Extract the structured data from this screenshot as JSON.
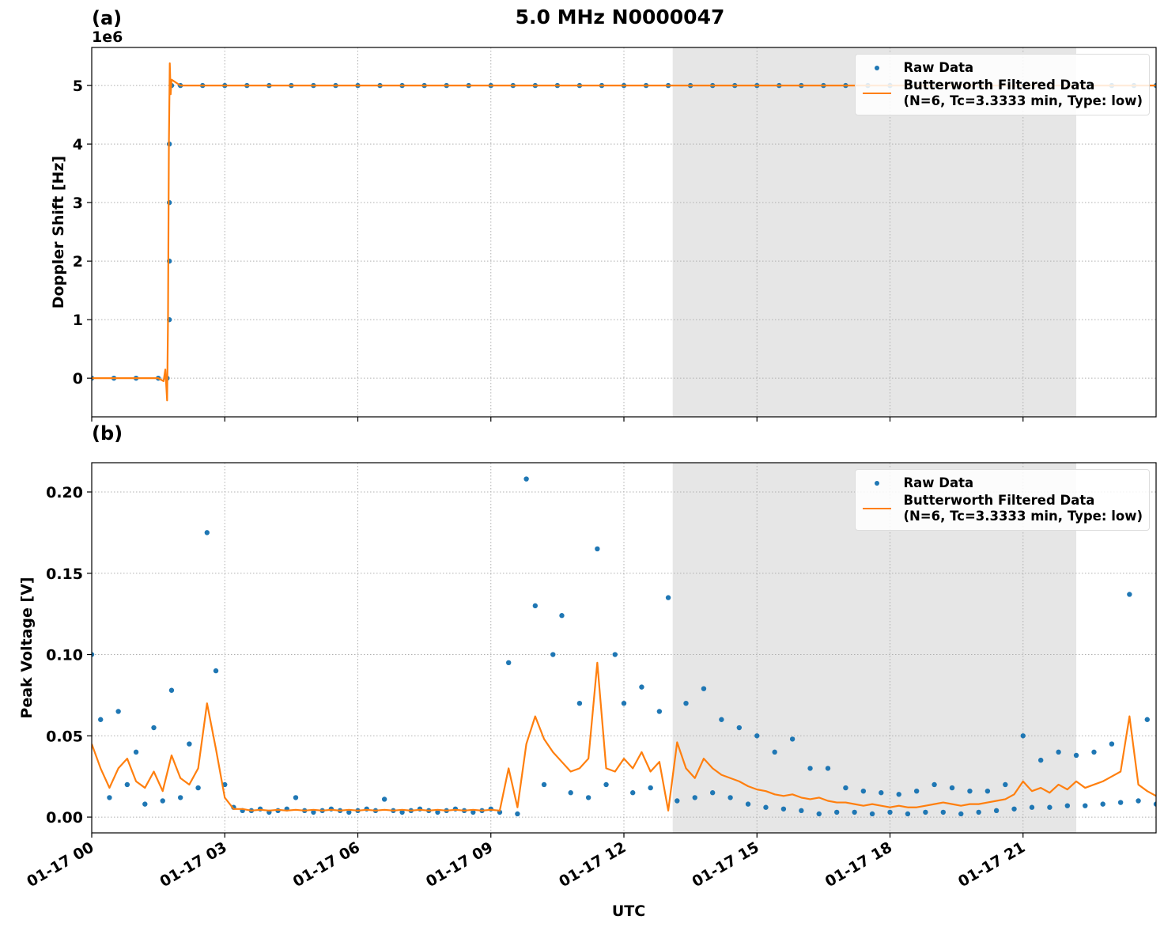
{
  "title": "5.0 MHz N0000047",
  "chart_data": [
    {
      "type": "line",
      "panel_label": "(a)",
      "ylabel": "Doppler Shift [Hz]",
      "offset_text": "1e6",
      "xlim": [
        0,
        24
      ],
      "xticks": [
        0,
        3,
        6,
        9,
        12,
        15,
        18,
        21
      ],
      "ylim": [
        -660000,
        5650000
      ],
      "yticks": [
        0,
        {
          "value": 1000000,
          "label": "1"
        },
        {
          "value": 2000000,
          "label": "2"
        },
        {
          "value": 3000000,
          "label": "3"
        },
        {
          "value": 4000000,
          "label": "4"
        },
        {
          "value": 5000000,
          "label": "5"
        }
      ],
      "grid": true,
      "legend": "upper right",
      "shaded_span": [
        13.1,
        22.2
      ],
      "shade_color": "#e6e6e6",
      "series": [
        {
          "name": "Raw Data",
          "type": "scatter",
          "color": "#1f77b4",
          "x": [
            0,
            0.5,
            1,
            1.5,
            1.7,
            1.75,
            1.75,
            1.75,
            1.75,
            1.8,
            2,
            2.5,
            3,
            3.5,
            4,
            4.5,
            5,
            5.5,
            6,
            6.5,
            7,
            7.5,
            8,
            8.5,
            9,
            9.5,
            10,
            10.5,
            11,
            11.5,
            12,
            12.5,
            13,
            13.5,
            14,
            14.5,
            15,
            15.5,
            16,
            16.5,
            17,
            17.5,
            18,
            18.5,
            19,
            19.5,
            20,
            20.5,
            21,
            21.5,
            22,
            22.5,
            23,
            23.5,
            24
          ],
          "values": [
            0,
            0,
            0,
            0,
            0,
            1000000,
            2000000,
            3000000,
            4000000,
            5000000,
            5000000,
            5000000,
            5000000,
            5000000,
            5000000,
            5000000,
            5000000,
            5000000,
            5000000,
            5000000,
            5000000,
            5000000,
            5000000,
            5000000,
            5000000,
            5000000,
            5000000,
            5000000,
            5000000,
            5000000,
            5000000,
            5000000,
            5000000,
            5000000,
            5000000,
            5000000,
            5000000,
            5000000,
            5000000,
            5000000,
            5000000,
            5000000,
            5000000,
            5000000,
            5000000,
            5000000,
            5000000,
            5000000,
            5000000,
            5000000,
            5000000,
            5000000,
            5000000,
            5000000,
            5000000
          ]
        },
        {
          "name": "Butterworth Filtered Data\n(N=6, Tc=3.3333 min, Type: low)",
          "type": "line",
          "color": "#ff7f0e",
          "x": [
            0,
            1.5,
            1.62,
            1.66,
            1.7,
            1.72,
            1.74,
            1.76,
            1.78,
            1.8,
            2,
            24
          ],
          "values": [
            0,
            0,
            -50000,
            150000,
            -380000,
            1000000,
            4000000,
            5380000,
            4850000,
            5100000,
            5000000,
            5000000
          ]
        }
      ]
    },
    {
      "type": "line",
      "panel_label": "(b)",
      "ylabel": "Peak Voltage [V]",
      "xlabel": "UTC",
      "xlim": [
        0,
        24
      ],
      "xticks": [
        {
          "value": 0,
          "label": "01-17 00"
        },
        {
          "value": 3,
          "label": "01-17 03"
        },
        {
          "value": 6,
          "label": "01-17 06"
        },
        {
          "value": 9,
          "label": "01-17 09"
        },
        {
          "value": 12,
          "label": "01-17 12"
        },
        {
          "value": 15,
          "label": "01-17 15"
        },
        {
          "value": 18,
          "label": "01-17 18"
        },
        {
          "value": 21,
          "label": "01-17 21"
        }
      ],
      "ylim": [
        -0.0097,
        0.218
      ],
      "yticks": [
        {
          "value": 0,
          "label": "0.00"
        },
        {
          "value": 0.05,
          "label": "0.05"
        },
        {
          "value": 0.1,
          "label": "0.10"
        },
        {
          "value": 0.15,
          "label": "0.15"
        },
        {
          "value": 0.2,
          "label": "0.20"
        }
      ],
      "grid": true,
      "legend": "upper right",
      "shaded_span": [
        13.1,
        22.2
      ],
      "shade_color": "#e6e6e6",
      "x": [
        0,
        0.2,
        0.4,
        0.6,
        0.8,
        1,
        1.2,
        1.4,
        1.6,
        1.8,
        2,
        2.2,
        2.4,
        2.6,
        2.8,
        3,
        3.2,
        3.4,
        3.6,
        3.8,
        4,
        4.2,
        4.4,
        4.6,
        4.8,
        5,
        5.2,
        5.4,
        5.6,
        5.8,
        6,
        6.2,
        6.4,
        6.6,
        6.8,
        7,
        7.2,
        7.4,
        7.6,
        7.8,
        8,
        8.2,
        8.4,
        8.6,
        8.8,
        9,
        9.2,
        9.4,
        9.6,
        9.8,
        10,
        10.2,
        10.4,
        10.6,
        10.8,
        11,
        11.2,
        11.4,
        11.6,
        11.8,
        12,
        12.2,
        12.4,
        12.6,
        12.8,
        13,
        13.2,
        13.4,
        13.6,
        13.8,
        14,
        14.2,
        14.4,
        14.6,
        14.8,
        15,
        15.2,
        15.4,
        15.6,
        15.8,
        16,
        16.2,
        16.4,
        16.6,
        16.8,
        17,
        17.2,
        17.4,
        17.6,
        17.8,
        18,
        18.2,
        18.4,
        18.6,
        18.8,
        19,
        19.2,
        19.4,
        19.6,
        19.8,
        20,
        20.2,
        20.4,
        20.6,
        20.8,
        21,
        21.2,
        21.4,
        21.6,
        21.8,
        22,
        22.2,
        22.4,
        22.6,
        22.8,
        23,
        23.2,
        23.4,
        23.6,
        23.8,
        24
      ],
      "series": [
        {
          "name": "Raw Data",
          "type": "scatter",
          "color": "#1f77b4",
          "values": [
            0.1,
            0.06,
            0.012,
            0.065,
            0.02,
            0.04,
            0.008,
            0.055,
            0.01,
            0.078,
            0.012,
            0.045,
            0.018,
            0.175,
            0.09,
            0.02,
            0.006,
            0.004,
            0.004,
            0.005,
            0.003,
            0.004,
            0.005,
            0.012,
            0.004,
            0.003,
            0.004,
            0.005,
            0.004,
            0.003,
            0.004,
            0.005,
            0.004,
            0.011,
            0.004,
            0.003,
            0.004,
            0.005,
            0.004,
            0.003,
            0.004,
            0.005,
            0.004,
            0.003,
            0.004,
            0.005,
            0.003,
            0.095,
            0.002,
            0.208,
            0.13,
            0.02,
            0.1,
            0.124,
            0.015,
            0.07,
            0.012,
            0.165,
            0.02,
            0.1,
            0.07,
            0.015,
            0.08,
            0.018,
            0.065,
            0.135,
            0.01,
            0.07,
            0.012,
            0.079,
            0.015,
            0.06,
            0.012,
            0.055,
            0.008,
            0.05,
            0.006,
            0.04,
            0.005,
            0.048,
            0.004,
            0.03,
            0.002,
            0.03,
            0.003,
            0.018,
            0.003,
            0.016,
            0.002,
            0.015,
            0.003,
            0.014,
            0.002,
            0.016,
            0.003,
            0.02,
            0.003,
            0.018,
            0.002,
            0.016,
            0.003,
            0.016,
            0.004,
            0.02,
            0.005,
            0.05,
            0.006,
            0.035,
            0.006,
            0.04,
            0.007,
            0.038,
            0.007,
            0.04,
            0.008,
            0.045,
            0.009,
            0.137,
            0.01,
            0.06,
            0.008
          ]
        },
        {
          "name": "Butterworth Filtered Data\n(N=6, Tc=3.3333 min, Type: low)",
          "type": "line",
          "color": "#ff7f0e",
          "values": [
            0.045,
            0.03,
            0.018,
            0.03,
            0.036,
            0.022,
            0.018,
            0.028,
            0.016,
            0.038,
            0.024,
            0.02,
            0.03,
            0.07,
            0.042,
            0.012,
            0.005,
            0.005,
            0.004,
            0.0045,
            0.004,
            0.0045,
            0.004,
            0.0045,
            0.004,
            0.0045,
            0.004,
            0.0045,
            0.004,
            0.0045,
            0.004,
            0.0045,
            0.004,
            0.0045,
            0.004,
            0.0045,
            0.004,
            0.0045,
            0.004,
            0.0045,
            0.004,
            0.0045,
            0.004,
            0.0045,
            0.004,
            0.0045,
            0.004,
            0.03,
            0.006,
            0.045,
            0.062,
            0.048,
            0.04,
            0.034,
            0.028,
            0.03,
            0.036,
            0.095,
            0.03,
            0.028,
            0.036,
            0.03,
            0.04,
            0.028,
            0.034,
            0.004,
            0.046,
            0.03,
            0.024,
            0.036,
            0.03,
            0.026,
            0.024,
            0.022,
            0.019,
            0.017,
            0.016,
            0.014,
            0.013,
            0.014,
            0.012,
            0.011,
            0.012,
            0.01,
            0.009,
            0.009,
            0.008,
            0.007,
            0.008,
            0.007,
            0.006,
            0.007,
            0.006,
            0.006,
            0.007,
            0.008,
            0.009,
            0.008,
            0.007,
            0.008,
            0.008,
            0.009,
            0.01,
            0.011,
            0.014,
            0.022,
            0.016,
            0.018,
            0.015,
            0.02,
            0.017,
            0.022,
            0.018,
            0.02,
            0.022,
            0.025,
            0.028,
            0.062,
            0.02,
            0.016,
            0.013
          ]
        }
      ]
    }
  ]
}
